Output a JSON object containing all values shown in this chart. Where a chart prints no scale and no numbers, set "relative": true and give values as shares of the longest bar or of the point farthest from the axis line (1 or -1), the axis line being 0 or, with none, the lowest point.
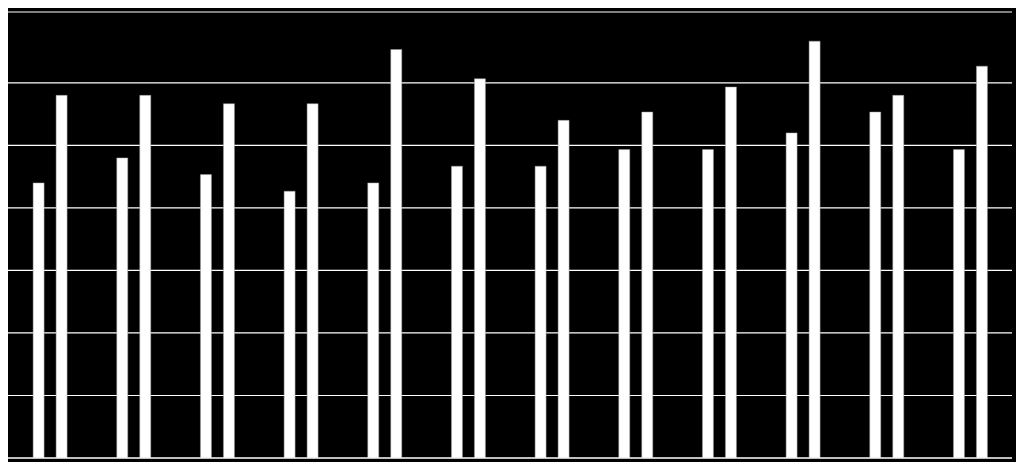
{
  "chart_data": {
    "type": "bar",
    "relative": true,
    "grid": "y",
    "categories": [
      null,
      null,
      null,
      null,
      null,
      null,
      null,
      null,
      null,
      null,
      null,
      null
    ],
    "series": [
      {
        "color": "#ffffff",
        "values": [
          0.66,
          0.72,
          0.68,
          0.64,
          0.66,
          0.7,
          0.7,
          0.74,
          0.74,
          0.78,
          0.83,
          0.74
        ]
      },
      {
        "color": "#ffffff",
        "values": [
          0.87,
          0.87,
          0.85,
          0.85,
          0.98,
          0.91,
          0.81,
          0.83,
          0.89,
          1,
          0.87,
          0.94
        ]
      }
    ]
  }
}
